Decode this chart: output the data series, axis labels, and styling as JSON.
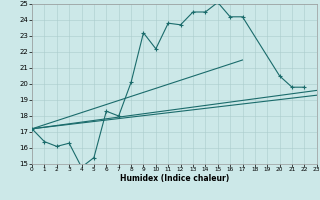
{
  "xlabel": "Humidex (Indice chaleur)",
  "xlim": [
    0,
    23
  ],
  "ylim": [
    15,
    25
  ],
  "xticks": [
    0,
    1,
    2,
    3,
    4,
    5,
    6,
    7,
    8,
    9,
    10,
    11,
    12,
    13,
    14,
    15,
    16,
    17,
    18,
    19,
    20,
    21,
    22,
    23
  ],
  "yticks": [
    15,
    16,
    17,
    18,
    19,
    20,
    21,
    22,
    23,
    24,
    25
  ],
  "bg_color": "#cce8e8",
  "line_color": "#1a6b6b",
  "grid_color": "#aacccc",
  "line1_x": [
    0,
    1,
    2,
    3,
    4,
    5,
    6,
    7,
    8,
    9,
    10,
    11,
    12,
    13,
    14,
    15,
    16,
    17,
    20,
    21,
    22
  ],
  "line1_y": [
    17.2,
    16.4,
    16.1,
    16.3,
    14.8,
    15.4,
    18.3,
    18.0,
    20.1,
    23.2,
    22.2,
    23.8,
    23.7,
    24.5,
    24.5,
    25.1,
    24.2,
    24.2,
    20.5,
    19.8,
    19.8
  ],
  "line2_x": [
    0,
    23
  ],
  "line2_y": [
    17.2,
    19.3
  ],
  "line3_x": [
    0,
    23
  ],
  "line3_y": [
    17.2,
    19.6
  ],
  "line4_x": [
    0,
    17
  ],
  "line4_y": [
    17.2,
    21.5
  ]
}
